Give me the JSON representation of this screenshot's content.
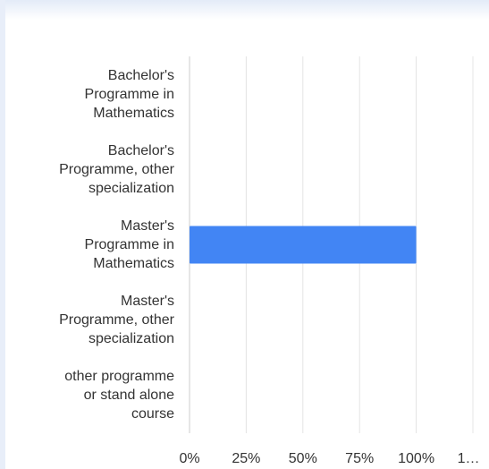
{
  "chart_data": {
    "type": "bar",
    "orientation": "horizontal",
    "categories": [
      "Bachelor's\nProgramme in\nMathematics",
      "Bachelor's\nProgramme, other\nspecialization",
      "Master's\nProgramme in\nMathematics",
      "Master's\nProgramme, other\nspecialization",
      "other programme\nor stand alone\ncourse"
    ],
    "values": [
      0,
      0,
      100,
      0,
      0
    ],
    "x_ticks": [
      "0%",
      "25%",
      "50%",
      "75%",
      "100%",
      "1…"
    ],
    "xlim": [
      0,
      125
    ],
    "grid": true,
    "colors": {
      "bar": "#4285f4",
      "grid": "#e4e4e4",
      "text": "#333333"
    }
  }
}
